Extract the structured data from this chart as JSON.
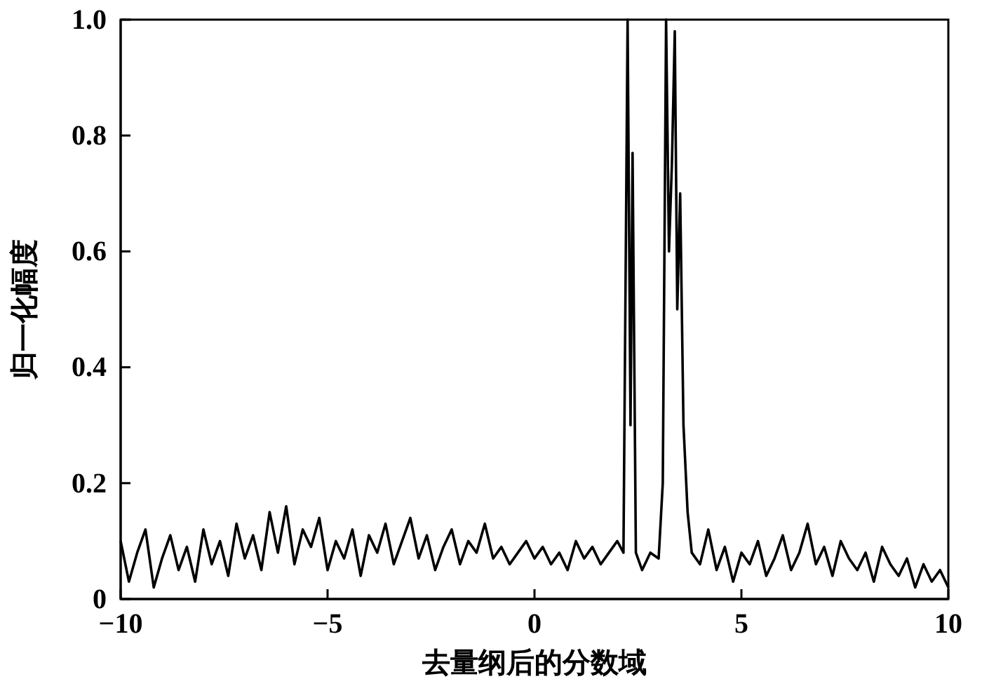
{
  "chart_data": {
    "type": "line",
    "xlabel": "去量纲后的分数域",
    "ylabel": "归一化幅度",
    "xlim": [
      -10,
      10
    ],
    "ylim": [
      0,
      1
    ],
    "xticks": [
      {
        "value": -10,
        "label": "−10"
      },
      {
        "value": -5,
        "label": "−5"
      },
      0,
      5,
      10
    ],
    "yticks": [
      0,
      0.2,
      0.4,
      0.6,
      0.8,
      {
        "value": 1,
        "label": "1.0"
      }
    ],
    "line_style": "solid",
    "series": [
      {
        "color": "#000000",
        "x": [
          -10,
          -9.8,
          -9.6,
          -9.4,
          -9.2,
          -9,
          -8.8,
          -8.6,
          -8.4,
          -8.2,
          -8,
          -7.8,
          -7.6,
          -7.4,
          -7.2,
          -7,
          -6.8,
          -6.6,
          -6.4,
          -6.2,
          -6,
          -5.8,
          -5.6,
          -5.4,
          -5.2,
          -5,
          -4.8,
          -4.6,
          -4.4,
          -4.2,
          -4,
          -3.8,
          -3.6,
          -3.4,
          -3.2,
          -3,
          -2.8,
          -2.6,
          -2.4,
          -2.2,
          -2,
          -1.8,
          -1.6,
          -1.4,
          -1.2,
          -1,
          -0.8,
          -0.6,
          -0.4,
          -0.2,
          0,
          0.2,
          0.4,
          0.6,
          0.8,
          1,
          1.2,
          1.4,
          1.6,
          1.8,
          2,
          2.15,
          2.25,
          2.32,
          2.37,
          2.45,
          2.6,
          2.8,
          3,
          3.1,
          3.18,
          3.25,
          3.32,
          3.39,
          3.45,
          3.52,
          3.6,
          3.7,
          3.8,
          4,
          4.2,
          4.4,
          4.6,
          4.8,
          5,
          5.2,
          5.4,
          5.6,
          5.8,
          6,
          6.2,
          6.4,
          6.6,
          6.8,
          7,
          7.2,
          7.4,
          7.6,
          7.8,
          8,
          8.2,
          8.4,
          8.6,
          8.8,
          9,
          9.2,
          9.4,
          9.6,
          9.8,
          10
        ],
        "values": [
          0.1,
          0.03,
          0.08,
          0.12,
          0.02,
          0.07,
          0.11,
          0.05,
          0.09,
          0.03,
          0.12,
          0.06,
          0.1,
          0.04,
          0.13,
          0.07,
          0.11,
          0.05,
          0.15,
          0.08,
          0.16,
          0.06,
          0.12,
          0.09,
          0.14,
          0.05,
          0.1,
          0.07,
          0.12,
          0.04,
          0.11,
          0.08,
          0.13,
          0.06,
          0.1,
          0.14,
          0.07,
          0.11,
          0.05,
          0.09,
          0.12,
          0.06,
          0.1,
          0.08,
          0.13,
          0.07,
          0.09,
          0.06,
          0.08,
          0.1,
          0.07,
          0.09,
          0.06,
          0.08,
          0.05,
          0.1,
          0.07,
          0.09,
          0.06,
          0.08,
          0.1,
          0.08,
          1.0,
          0.3,
          0.77,
          0.08,
          0.05,
          0.08,
          0.07,
          0.2,
          1.0,
          0.6,
          0.75,
          0.98,
          0.5,
          0.7,
          0.3,
          0.15,
          0.08,
          0.06,
          0.12,
          0.05,
          0.09,
          0.03,
          0.08,
          0.06,
          0.1,
          0.04,
          0.07,
          0.11,
          0.05,
          0.08,
          0.13,
          0.06,
          0.09,
          0.04,
          0.1,
          0.07,
          0.05,
          0.08,
          0.03,
          0.09,
          0.06,
          0.04,
          0.07,
          0.02,
          0.06,
          0.03,
          0.05,
          0.02
        ]
      }
    ]
  }
}
